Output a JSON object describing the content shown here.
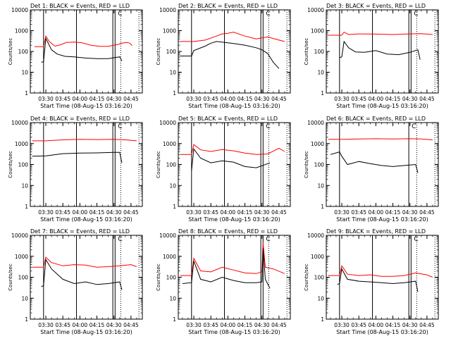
{
  "chart_data": [
    {
      "type": "line",
      "title": "Det 1: BLACK = Events, RED = LLD",
      "ylabel": "Counts/sec",
      "xlabel": "Start Time (08-Aug-15 03:16:20)",
      "x_ticks": [
        "03:30",
        "03:45",
        "04:00",
        "04:15",
        "04:30",
        "04:45"
      ],
      "y_ticks": [
        "1",
        "10",
        "100",
        "1000",
        "10000"
      ],
      "ylim": [
        1,
        10000
      ],
      "xlim": [
        "03:16:20",
        "04:55"
      ],
      "yscale": "log",
      "marker_label": "C",
      "solid_lines": [
        "03:28",
        "03:57",
        "04:29",
        "04:31"
      ],
      "dotted_lines": [
        "04:36",
        "04:52"
      ],
      "series": [
        {
          "color": "#ff0000",
          "time": [
            "03:20",
            "03:28",
            "03:30",
            "03:33",
            "03:38",
            "03:43",
            "03:48",
            "03:55",
            "04:02",
            "04:10",
            "04:18",
            "04:25",
            "04:30",
            "04:34",
            "04:37",
            "04:41",
            "04:44",
            "04:46"
          ],
          "values": [
            170,
            170,
            550,
            300,
            180,
            210,
            270,
            280,
            260,
            195,
            175,
            175,
            200,
            220,
            250,
            270,
            250,
            190
          ]
        },
        {
          "color": "#000000",
          "time": [
            "03:26",
            "03:28",
            "03:30",
            "03:32",
            "03:35",
            "03:40",
            "03:47",
            "03:55",
            "04:05",
            "04:15",
            "04:25",
            "04:30",
            "04:35",
            "04:37"
          ],
          "values": [
            30,
            32,
            420,
            260,
            120,
            75,
            58,
            55,
            48,
            45,
            45,
            50,
            55,
            35
          ]
        }
      ]
    },
    {
      "type": "line",
      "title": "Det 2: BLACK = Events, RED = LLD",
      "ylabel": "Counts/sec",
      "xlabel": "Start Time (08-Aug-15 03:16:20)",
      "x_ticks": [
        "03:30",
        "03:45",
        "04:00",
        "04:15",
        "04:30",
        "04:45"
      ],
      "y_ticks": [
        "1",
        "10",
        "100",
        "1000",
        "10000"
      ],
      "ylim": [
        1,
        10000
      ],
      "xlim": [
        "03:16:20",
        "04:55"
      ],
      "yscale": "log",
      "marker_label": "C",
      "solid_lines": [
        "03:28",
        "03:57",
        "04:29",
        "04:31"
      ],
      "dotted_lines": [
        "04:36",
        "04:52"
      ],
      "series": [
        {
          "color": "#ff0000",
          "time": [
            "03:18",
            "03:30",
            "03:40",
            "03:50",
            "03:55",
            "04:00",
            "04:05",
            "04:15",
            "04:25",
            "04:30",
            "04:35",
            "04:40",
            "04:45",
            "04:50"
          ],
          "values": [
            300,
            300,
            350,
            550,
            700,
            750,
            850,
            550,
            400,
            450,
            500,
            420,
            350,
            300
          ]
        },
        {
          "color": "#000000",
          "time": [
            "03:18",
            "03:28",
            "03:30",
            "03:40",
            "03:45",
            "03:50",
            "04:00",
            "04:05",
            "04:15",
            "04:25",
            "04:30",
            "04:35",
            "04:40",
            "04:45"
          ],
          "values": [
            60,
            60,
            110,
            180,
            250,
            300,
            260,
            240,
            200,
            150,
            120,
            80,
            30,
            15
          ]
        }
      ]
    },
    {
      "type": "line",
      "title": "Det 3: BLACK = Events, RED = LLD",
      "ylabel": "Counts/sec",
      "xlabel": "Start Time (08-Aug-15 03:16:20)",
      "x_ticks": [
        "03:30",
        "03:45",
        "04:00",
        "04:15",
        "04:30",
        "04:45"
      ],
      "y_ticks": [
        "1",
        "10",
        "100",
        "1000",
        "10000"
      ],
      "ylim": [
        1,
        10000
      ],
      "xlim": [
        "03:16:20",
        "04:55"
      ],
      "yscale": "log",
      "marker_label": "C",
      "solid_lines": [
        "03:28",
        "03:57",
        "04:29",
        "04:31"
      ],
      "dotted_lines": [
        "04:36",
        "04:52"
      ],
      "series": [
        {
          "color": "#ff0000",
          "time": [
            "03:18",
            "03:30",
            "03:32",
            "03:36",
            "03:45",
            "04:00",
            "04:15",
            "04:30",
            "04:40",
            "04:50"
          ],
          "values": [
            600,
            600,
            850,
            650,
            700,
            680,
            650,
            700,
            720,
            650
          ]
        },
        {
          "color": "#000000",
          "time": [
            "03:28",
            "03:30",
            "03:32",
            "03:36",
            "03:42",
            "03:50",
            "04:00",
            "04:10",
            "04:20",
            "04:30",
            "04:37",
            "04:39"
          ],
          "values": [
            50,
            55,
            300,
            150,
            95,
            90,
            110,
            75,
            70,
            90,
            120,
            40
          ]
        }
      ]
    },
    {
      "type": "line",
      "title": "Det 4: BLACK = Events, RED = LLD",
      "ylabel": "Counts/sec",
      "xlabel": "Start Time (08-Aug-15 03:16:20)",
      "x_ticks": [
        "03:30",
        "03:45",
        "04:00",
        "04:15",
        "04:30",
        "04:45"
      ],
      "y_ticks": [
        "1",
        "10",
        "100",
        "1000",
        "10000"
      ],
      "ylim": [
        1,
        10000
      ],
      "xlim": [
        "03:16:20",
        "04:55"
      ],
      "yscale": "log",
      "marker_label": "C",
      "solid_lines": [
        "03:28",
        "03:57",
        "04:29",
        "04:31"
      ],
      "dotted_lines": [
        "04:36",
        "04:52"
      ],
      "series": [
        {
          "color": "#ff0000",
          "time": [
            "03:18",
            "03:30",
            "03:45",
            "04:00",
            "04:15",
            "04:30",
            "04:40",
            "04:50"
          ],
          "values": [
            1350,
            1350,
            1500,
            1600,
            1550,
            1600,
            1500,
            1350
          ]
        },
        {
          "color": "#000000",
          "time": [
            "03:18",
            "03:30",
            "03:45",
            "04:00",
            "04:15",
            "04:30",
            "04:35",
            "04:37"
          ],
          "values": [
            250,
            260,
            330,
            350,
            360,
            380,
            380,
            120
          ]
        }
      ]
    },
    {
      "type": "line",
      "title": "Det 5: BLACK = Events, RED = LLD",
      "ylabel": "Counts/sec",
      "xlabel": "Start Time (08-Aug-15 03:16:20)",
      "x_ticks": [
        "03:30",
        "03:45",
        "04:00",
        "04:15",
        "04:30",
        "04:45"
      ],
      "y_ticks": [
        "1",
        "10",
        "100",
        "1000",
        "10000"
      ],
      "ylim": [
        1,
        10000
      ],
      "xlim": [
        "03:16:20",
        "04:55"
      ],
      "yscale": "log",
      "marker_label": "C",
      "solid_lines": [
        "03:28",
        "03:57",
        "04:29",
        "04:31"
      ],
      "dotted_lines": [
        "04:36",
        "04:52"
      ],
      "series": [
        {
          "color": "#ff0000",
          "time": [
            "03:18",
            "03:28",
            "03:30",
            "03:36",
            "03:45",
            "03:55",
            "04:05",
            "04:15",
            "04:25",
            "04:35",
            "04:45",
            "04:50"
          ],
          "values": [
            300,
            300,
            900,
            500,
            420,
            520,
            450,
            350,
            300,
            320,
            600,
            420
          ]
        },
        {
          "color": "#000000",
          "time": [
            "03:28",
            "03:30",
            "03:36",
            "03:45",
            "03:55",
            "04:05",
            "04:15",
            "04:25",
            "04:35",
            "04:37"
          ],
          "values": [
            50,
            550,
            200,
            120,
            150,
            130,
            80,
            70,
            110,
            120
          ]
        }
      ]
    },
    {
      "type": "line",
      "title": "Det 6: BLACK = Events, RED = LLD",
      "ylabel": "Counts/sec",
      "xlabel": "Start Time (08-Aug-15 03:16:20)",
      "x_ticks": [
        "03:30",
        "03:45",
        "04:00",
        "04:15",
        "04:30",
        "04:45"
      ],
      "y_ticks": [
        "1",
        "10",
        "100",
        "1000",
        "10000"
      ],
      "ylim": [
        1,
        10000
      ],
      "xlim": [
        "03:16:20",
        "04:55"
      ],
      "yscale": "log",
      "marker_label": "C",
      "solid_lines": [
        "03:28",
        "04:29"
      ],
      "dotted_lines": [
        "04:36",
        "04:52"
      ],
      "series": [
        {
          "color": "#ff0000",
          "time": [
            "03:18",
            "03:30",
            "03:45",
            "04:00",
            "04:15",
            "04:30",
            "04:40",
            "04:50"
          ],
          "values": [
            1600,
            1600,
            1650,
            1700,
            1650,
            1700,
            1650,
            1500
          ]
        },
        {
          "color": "#000000",
          "time": [
            "03:20",
            "03:28",
            "03:30",
            "03:35",
            "03:45",
            "03:55",
            "04:05",
            "04:15",
            "04:25",
            "04:35",
            "04:37"
          ],
          "values": [
            300,
            400,
            250,
            100,
            140,
            110,
            90,
            80,
            90,
            100,
            40
          ]
        }
      ]
    },
    {
      "type": "line",
      "title": "Det 7: BLACK = Events, RED = LLD",
      "ylabel": "Counts/sec",
      "xlabel": "Start Time (08-Aug-15 03:16:20)",
      "x_ticks": [
        "03:30",
        "03:45",
        "04:00",
        "04:15",
        "04:30",
        "04:45"
      ],
      "y_ticks": [
        "1",
        "10",
        "100",
        "1000",
        "10000"
      ],
      "ylim": [
        1,
        10000
      ],
      "xlim": [
        "03:16:20",
        "04:55"
      ],
      "yscale": "log",
      "marker_label": "C",
      "solid_lines": [
        "03:28",
        "03:57",
        "04:29",
        "04:31"
      ],
      "dotted_lines": [
        "04:36",
        "04:52"
      ],
      "series": [
        {
          "color": "#ff0000",
          "time": [
            "03:18",
            "03:28",
            "03:30",
            "03:35",
            "03:45",
            "03:55",
            "04:05",
            "04:15",
            "04:25",
            "04:35",
            "04:45",
            "04:50"
          ],
          "values": [
            300,
            300,
            900,
            500,
            350,
            400,
            380,
            300,
            320,
            350,
            400,
            320
          ]
        },
        {
          "color": "#000000",
          "time": [
            "03:26",
            "03:28",
            "03:30",
            "03:35",
            "03:45",
            "03:55",
            "04:05",
            "04:15",
            "04:25",
            "04:35",
            "04:37"
          ],
          "values": [
            35,
            40,
            700,
            250,
            80,
            50,
            60,
            45,
            50,
            60,
            25
          ]
        }
      ]
    },
    {
      "type": "line",
      "title": "Det 8: BLACK = Events, RED = LLD",
      "ylabel": "Counts/sec",
      "xlabel": "Start Time (08-Aug-15 03:16:20)",
      "x_ticks": [
        "03:30",
        "03:45",
        "04:00",
        "04:15",
        "04:30",
        "04:45"
      ],
      "y_ticks": [
        "1",
        "10",
        "100",
        "1000",
        "10000"
      ],
      "ylim": [
        1,
        10000
      ],
      "xlim": [
        "03:16:20",
        "04:55"
      ],
      "yscale": "log",
      "marker_label": "C",
      "solid_lines": [
        "03:28",
        "03:57",
        "04:29",
        "04:31"
      ],
      "dotted_lines": [
        "04:36",
        "04:52"
      ],
      "series": [
        {
          "color": "#ff0000",
          "time": [
            "03:18",
            "03:28",
            "03:30",
            "03:36",
            "03:45",
            "03:55",
            "04:05",
            "04:15",
            "04:25",
            "04:30",
            "04:31",
            "04:33",
            "04:40",
            "04:50"
          ],
          "values": [
            120,
            120,
            800,
            200,
            180,
            300,
            220,
            160,
            150,
            180,
            4500,
            300,
            250,
            150
          ]
        },
        {
          "color": "#000000",
          "time": [
            "03:20",
            "03:28",
            "03:30",
            "03:36",
            "03:45",
            "03:55",
            "04:05",
            "04:15",
            "04:25",
            "04:30",
            "04:31",
            "04:33",
            "04:37"
          ],
          "values": [
            50,
            55,
            600,
            80,
            60,
            100,
            70,
            55,
            55,
            60,
            2500,
            80,
            30
          ]
        }
      ]
    },
    {
      "type": "line",
      "title": "Det 9: BLACK = Events, RED = LLD",
      "ylabel": "Counts/sec",
      "xlabel": "Start Time (08-Aug-15 03:16:20)",
      "x_ticks": [
        "03:30",
        "03:45",
        "04:00",
        "04:15",
        "04:30",
        "04:45"
      ],
      "y_ticks": [
        "1",
        "10",
        "100",
        "1000",
        "10000"
      ],
      "ylim": [
        1,
        10000
      ],
      "xlim": [
        "03:16:20",
        "04:55"
      ],
      "yscale": "log",
      "marker_label": "C",
      "solid_lines": [
        "03:28",
        "03:57",
        "04:29",
        "04:31"
      ],
      "dotted_lines": [
        "04:36",
        "04:52"
      ],
      "series": [
        {
          "color": "#ff0000",
          "time": [
            "03:18",
            "03:28",
            "03:30",
            "03:35",
            "03:45",
            "03:55",
            "04:05",
            "04:15",
            "04:25",
            "04:35",
            "04:45",
            "04:50"
          ],
          "values": [
            120,
            120,
            350,
            140,
            120,
            130,
            110,
            110,
            120,
            160,
            130,
            100
          ]
        },
        {
          "color": "#000000",
          "time": [
            "03:26",
            "03:28",
            "03:30",
            "03:35",
            "03:45",
            "03:55",
            "04:05",
            "04:15",
            "04:25",
            "04:35",
            "04:37"
          ],
          "values": [
            45,
            50,
            250,
            80,
            65,
            60,
            55,
            50,
            55,
            65,
            20
          ]
        }
      ]
    }
  ]
}
